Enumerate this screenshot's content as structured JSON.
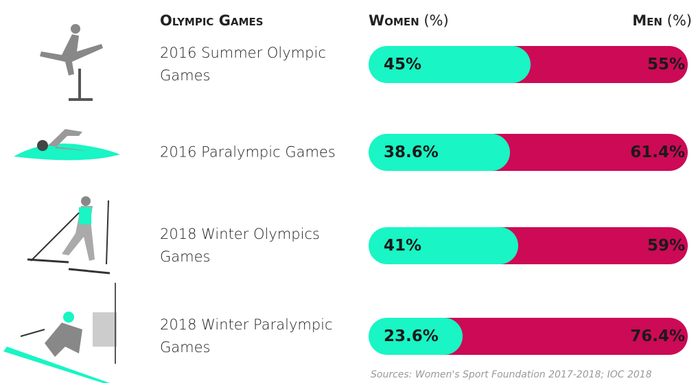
{
  "chart_data": {
    "type": "stacked-bar-100",
    "title": "Olympic Games",
    "axis_unit": "(%)",
    "categories": [
      "2016 Summer Olympic Games",
      "2016 Paralympic Games",
      "2018 Winter Olympics Games",
      "2018 Winter Paralympic Games"
    ],
    "xlim": [
      0,
      100
    ],
    "series": [
      {
        "name": "Women",
        "color": "#19f5c4",
        "values": [
          45,
          38.6,
          41,
          23.6
        ],
        "value_labels": [
          "45%",
          "38.6%",
          "41%",
          "23.6%"
        ]
      },
      {
        "name": "Men",
        "color": "#cc0a55",
        "values": [
          55,
          61.4,
          59,
          76.4
        ],
        "value_labels": [
          "55%",
          "61.4%",
          "59%",
          "76.4%"
        ]
      }
    ],
    "source": "Sources: Women's Sport Foundation 2017-2018; IOC 2018"
  }
}
